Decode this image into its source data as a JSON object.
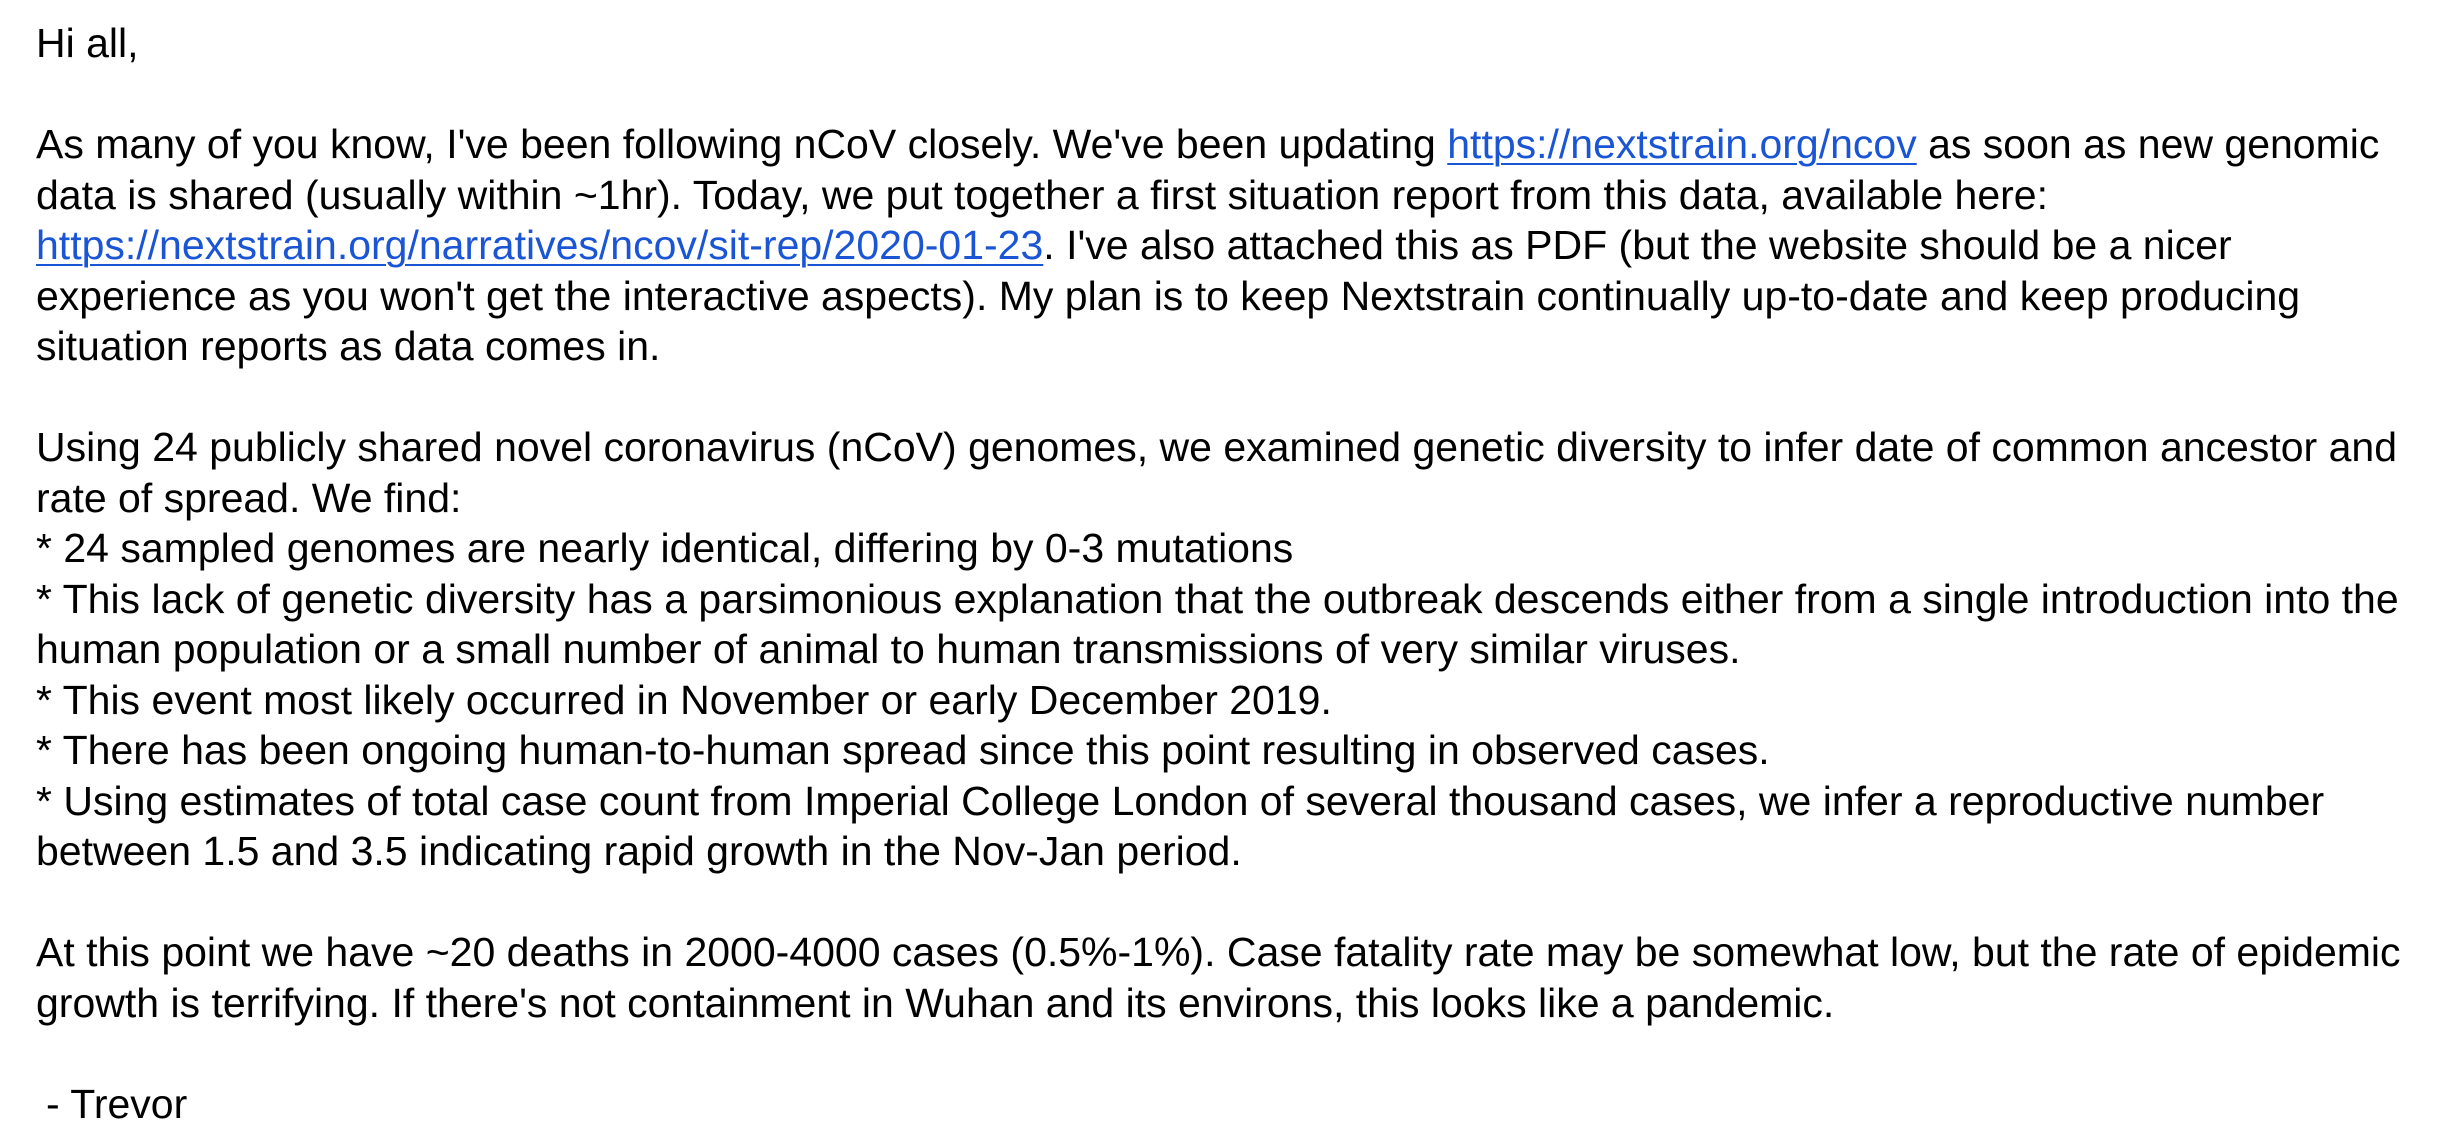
{
  "greeting": "Hi all,",
  "paragraph1": {
    "text_a": "As many of you know, I've been following nCoV closely. We've been updating ",
    "link1": "https://nextstrain.org/ncov",
    "text_b": " as soon as new genomic data is shared (usually within ~1hr). Today, we put together a first situation report from this data, available here: ",
    "link2": "https://nextstrain.org/narratives/ncov/sit-rep/2020-01-23",
    "text_c": ". I've also attached this as PDF (but the website should be a nicer experience as you won't get the interactive aspects). My plan is to keep Nextstrain continually up-to-date and keep producing situation reports as data comes in."
  },
  "paragraph2": {
    "intro": "Using 24 publicly shared novel coronavirus (nCoV) genomes, we examined genetic diversity to infer date of common ancestor and rate of spread. We find:",
    "bullets": [
      "* 24 sampled genomes are nearly identical, differing by 0-3 mutations",
      "* This lack of genetic diversity has a parsimonious explanation that the outbreak descends either from a single introduction into the human population or a small number of animal to human transmissions of very similar viruses.",
      "* This event most likely occurred in November or early December 2019.",
      "* There has been ongoing human-to-human spread since this point resulting in observed cases.",
      "* Using estimates of total case count from Imperial College London of several thousand cases, we infer a reproductive number between 1.5 and 3.5 indicating rapid growth in the Nov-Jan period."
    ]
  },
  "paragraph3": "At this point we have ~20 deaths in 2000-4000 cases (0.5%-1%). Case fatality rate may be somewhat low, but the rate of epidemic growth is terrifying. If there's not containment in Wuhan and its environs, this looks like a pandemic.",
  "signature": "- Trevor"
}
